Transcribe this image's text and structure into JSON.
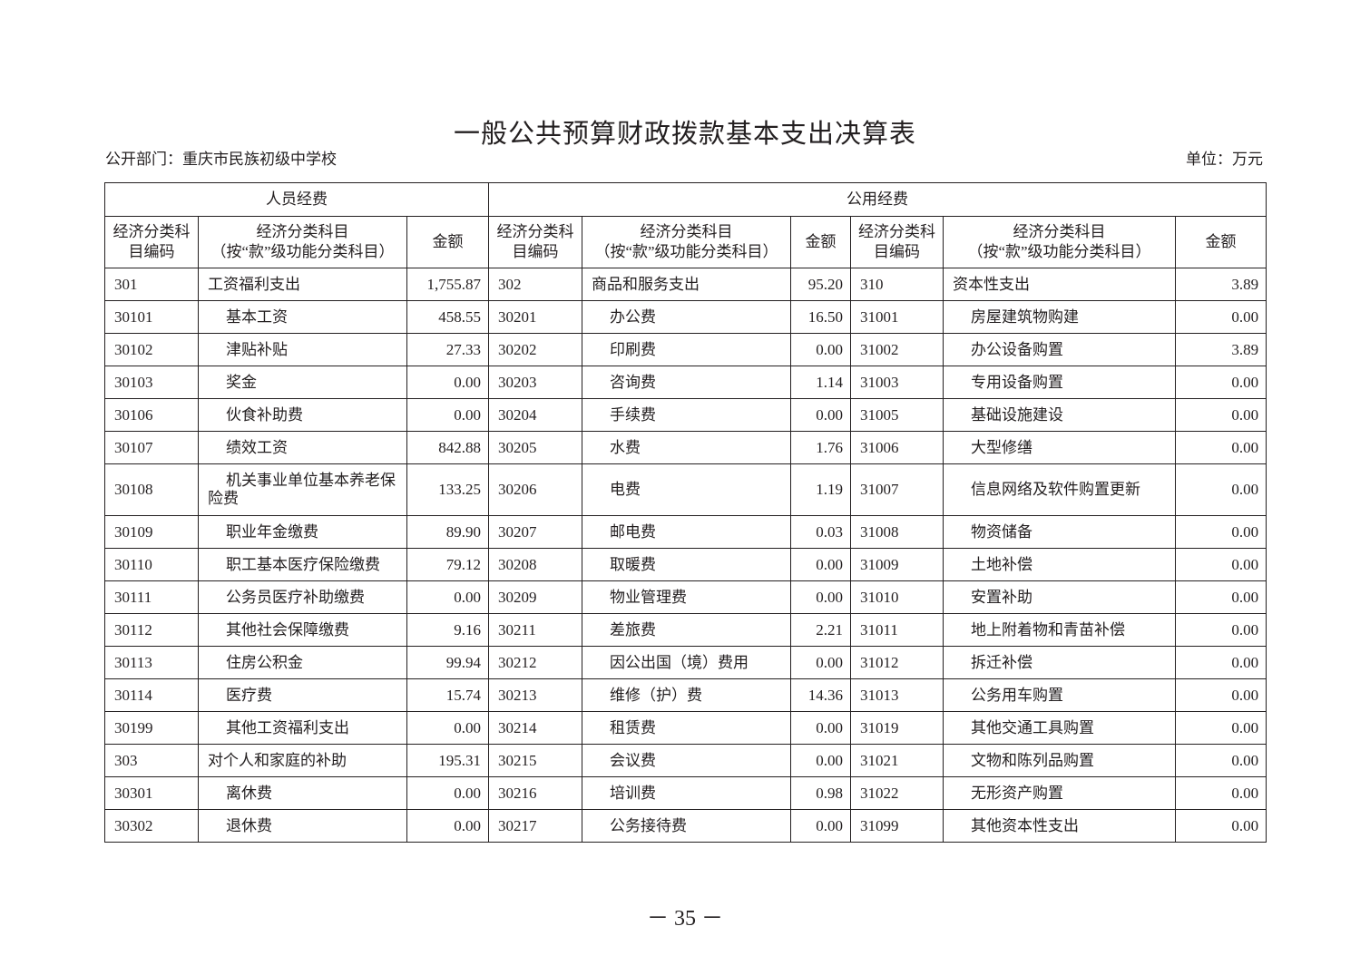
{
  "title": "一般公共预算财政拨款基本支出决算表",
  "department": "公开部门：重庆市民族初级中学校",
  "unit": "单位：万元",
  "groups": [
    "人员经费",
    "公用经费"
  ],
  "headers": {
    "code": "经济分类科目编码",
    "name_line1": "经济分类科目",
    "name_line2": "（按“款”级功能分类科目）",
    "amount": "金额"
  },
  "rows": [
    [
      "301",
      "工资福利支出",
      "1,755.87",
      "302",
      "商品和服务支出",
      "95.20",
      "310",
      "资本性支出",
      "3.89"
    ],
    [
      "30101",
      "基本工资",
      "458.55",
      "30201",
      "办公费",
      "16.50",
      "31001",
      "房屋建筑物购建",
      "0.00"
    ],
    [
      "30102",
      "津贴补贴",
      "27.33",
      "30202",
      "印刷费",
      "0.00",
      "31002",
      "办公设备购置",
      "3.89"
    ],
    [
      "30103",
      "奖金",
      "0.00",
      "30203",
      "咨询费",
      "1.14",
      "31003",
      "专用设备购置",
      "0.00"
    ],
    [
      "30106",
      "伙食补助费",
      "0.00",
      "30204",
      "手续费",
      "0.00",
      "31005",
      "基础设施建设",
      "0.00"
    ],
    [
      "30107",
      "绩效工资",
      "842.88",
      "30205",
      "水费",
      "1.76",
      "31006",
      "大型修缮",
      "0.00"
    ],
    [
      "30108",
      "机关事业单位基本养老保险费",
      "133.25",
      "30206",
      "电费",
      "1.19",
      "31007",
      "信息网络及软件购置更新",
      "0.00"
    ],
    [
      "30109",
      "职业年金缴费",
      "89.90",
      "30207",
      "邮电费",
      "0.03",
      "31008",
      "物资储备",
      "0.00"
    ],
    [
      "30110",
      "职工基本医疗保险缴费",
      "79.12",
      "30208",
      "取暖费",
      "0.00",
      "31009",
      "土地补偿",
      "0.00"
    ],
    [
      "30111",
      "公务员医疗补助缴费",
      "0.00",
      "30209",
      "物业管理费",
      "0.00",
      "31010",
      "安置补助",
      "0.00"
    ],
    [
      "30112",
      "其他社会保障缴费",
      "9.16",
      "30211",
      "差旅费",
      "2.21",
      "31011",
      "地上附着物和青苗补偿",
      "0.00"
    ],
    [
      "30113",
      "住房公积金",
      "99.94",
      "30212",
      "因公出国（境）费用",
      "0.00",
      "31012",
      "拆迁补偿",
      "0.00"
    ],
    [
      "30114",
      "医疗费",
      "15.74",
      "30213",
      "维修（护）费",
      "14.36",
      "31013",
      "公务用车购置",
      "0.00"
    ],
    [
      "30199",
      "其他工资福利支出",
      "0.00",
      "30214",
      "租赁费",
      "0.00",
      "31019",
      "其他交通工具购置",
      "0.00"
    ],
    [
      "303",
      "对个人和家庭的补助",
      "195.31",
      "30215",
      "会议费",
      "0.00",
      "31021",
      "文物和陈列品购置",
      "0.00"
    ],
    [
      "30301",
      "离休费",
      "0.00",
      "30216",
      "培训费",
      "0.98",
      "31022",
      "无形资产购置",
      "0.00"
    ],
    [
      "30302",
      "退休费",
      "0.00",
      "30217",
      "公务接待费",
      "0.00",
      "31099",
      "其他资本性支出",
      "0.00"
    ]
  ],
  "page_number": "－ 35 －"
}
